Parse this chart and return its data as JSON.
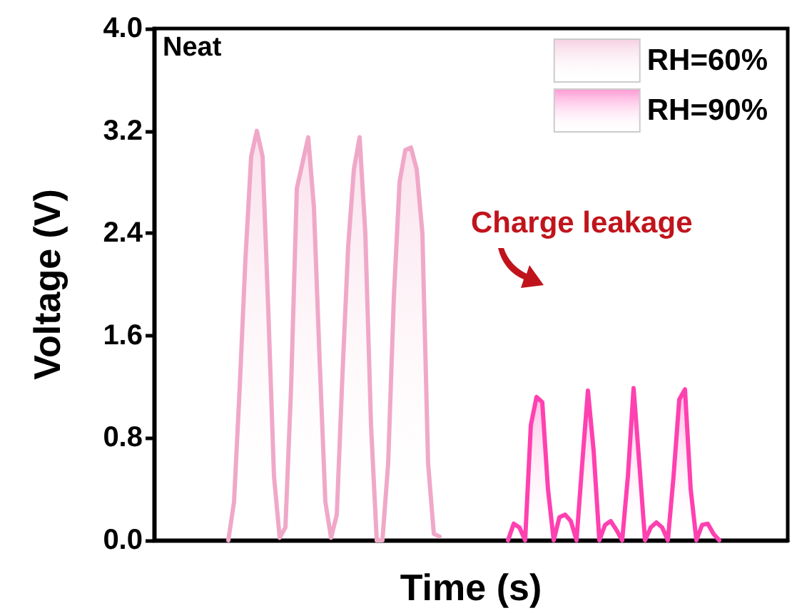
{
  "chart_data": {
    "type": "area",
    "xlabel": "Time (s)",
    "ylabel": "Voltage (V)",
    "annotations": [
      "Neat",
      "Charge leakage"
    ],
    "categories": [
      null,
      null,
      null,
      null,
      null,
      null,
      null,
      null,
      null,
      null,
      null,
      null,
      null,
      null,
      null,
      null,
      null,
      null,
      null,
      null,
      null,
      null,
      null,
      null,
      null,
      null,
      null,
      null,
      null,
      null,
      null,
      null,
      null,
      null,
      null,
      null,
      null,
      null,
      null,
      null,
      null,
      null,
      null,
      null,
      null,
      null,
      null,
      null,
      null,
      null,
      null,
      null,
      null,
      null,
      null,
      null,
      null,
      null,
      null,
      null,
      null,
      null,
      null,
      null,
      null,
      null,
      null,
      null,
      null,
      null,
      null,
      null,
      null,
      null,
      null,
      null,
      null,
      null,
      null,
      null,
      null,
      null,
      null,
      null,
      null,
      null,
      null,
      null,
      null,
      null,
      null,
      null,
      null,
      null,
      null,
      null,
      null,
      null,
      null,
      null,
      null,
      null,
      null,
      null,
      null,
      null,
      null,
      null,
      null,
      null,
      null,
      null
    ],
    "series": [
      {
        "name": "RH=60%",
        "color": "#f0a8c8",
        "values": [
          null,
          null,
          null,
          null,
          null,
          null,
          null,
          null,
          null,
          null,
          null,
          null,
          null,
          0,
          0.3,
          1.2,
          2.2,
          3.0,
          3.2,
          3.0,
          1.8,
          0.5,
          0.02,
          0.1,
          1.2,
          2.75,
          2.95,
          3.15,
          2.6,
          1.4,
          0.3,
          0.02,
          0.2,
          1.3,
          2.3,
          2.9,
          3.15,
          2.4,
          0.9,
          0,
          0,
          0.6,
          1.9,
          2.8,
          3.05,
          3.07,
          2.9,
          2.4,
          0.6,
          0.05,
          0.03,
          null,
          null,
          null,
          null,
          null,
          null,
          null,
          null,
          null,
          null,
          null,
          null,
          null,
          null,
          null,
          null,
          null,
          null,
          null,
          null,
          null,
          null,
          null,
          null,
          null,
          null,
          null,
          null,
          null,
          null,
          null,
          null,
          null,
          null,
          null,
          null,
          null,
          null,
          null,
          null,
          null,
          null,
          null,
          null,
          null,
          null,
          null,
          null,
          null,
          null,
          null,
          null,
          null,
          null,
          null,
          null,
          null,
          null,
          null,
          null,
          null
        ]
      },
      {
        "name": "RH=90%",
        "color": "#ff40b0",
        "values": [
          null,
          null,
          null,
          null,
          null,
          null,
          null,
          null,
          null,
          null,
          null,
          null,
          null,
          null,
          null,
          null,
          null,
          null,
          null,
          null,
          null,
          null,
          null,
          null,
          null,
          null,
          null,
          null,
          null,
          null,
          null,
          null,
          null,
          null,
          null,
          null,
          null,
          null,
          null,
          null,
          null,
          null,
          null,
          null,
          null,
          null,
          null,
          null,
          null,
          null,
          null,
          null,
          null,
          null,
          null,
          null,
          null,
          null,
          null,
          null,
          null,
          null,
          0,
          0.13,
          0.1,
          0,
          0.9,
          1.12,
          1.08,
          0.4,
          0,
          0.18,
          0.2,
          0.15,
          0,
          0.6,
          1.17,
          0.7,
          0,
          0.12,
          0.15,
          0.08,
          0,
          0.5,
          1.19,
          0.6,
          0,
          0.1,
          0.14,
          0.1,
          0,
          0.5,
          1.1,
          1.18,
          0.4,
          0,
          0.12,
          0.13,
          0.05,
          0,
          null,
          null,
          null,
          null,
          null,
          null,
          null,
          null,
          null,
          null,
          null,
          null
        ]
      }
    ],
    "ylim": [
      0,
      4.0
    ],
    "yticks": [
      {
        "value": 0,
        "label": "0.0"
      },
      0.8,
      1.6,
      2.4,
      3.2,
      {
        "value": 4,
        "label": "4.0"
      }
    ],
    "tick_labels": "y",
    "grid": false,
    "legend": "top right",
    "line_style": "solid"
  }
}
